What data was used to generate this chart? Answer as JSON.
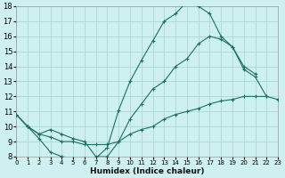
{
  "bg_color": "#cff0f0",
  "grid_color": "#aad8d8",
  "line_color": "#1a7060",
  "xlabel": "Humidex (Indice chaleur)",
  "xlim": [
    0,
    23
  ],
  "ylim": [
    8,
    18
  ],
  "xticks": [
    0,
    1,
    2,
    3,
    4,
    5,
    6,
    7,
    8,
    9,
    10,
    11,
    12,
    13,
    14,
    15,
    16,
    17,
    18,
    19,
    20,
    21,
    22,
    23
  ],
  "yticks": [
    8,
    9,
    10,
    11,
    12,
    13,
    14,
    15,
    16,
    17,
    18
  ],
  "curve1_x": [
    0,
    1,
    2,
    3,
    4,
    5,
    6,
    7,
    8,
    9,
    10,
    11,
    12,
    13,
    14,
    15,
    16,
    17,
    18,
    19,
    20,
    21,
    22
  ],
  "curve1_y": [
    10.8,
    10.0,
    9.2,
    8.3,
    8.0,
    7.9,
    7.9,
    7.9,
    8.6,
    11.1,
    13.0,
    14.4,
    15.7,
    17.0,
    17.5,
    18.3,
    18.0,
    17.5,
    16.0,
    15.3,
    13.8,
    13.3,
    12.0
  ],
  "curve2_x": [
    0,
    1,
    2,
    3,
    4,
    5,
    6,
    7,
    8,
    9,
    10,
    11,
    12,
    13,
    14,
    15,
    16,
    17,
    18,
    19,
    20,
    21,
    22,
    23
  ],
  "curve2_y": [
    10.8,
    10.0,
    9.5,
    9.8,
    9.5,
    9.2,
    9.0,
    8.0,
    8.0,
    9.0,
    10.5,
    11.5,
    12.5,
    13.0,
    14.0,
    14.5,
    15.5,
    16.0,
    15.8,
    15.3,
    14.0,
    13.5,
    null,
    null
  ],
  "curve3_x": [
    0,
    1,
    2,
    3,
    4,
    5,
    6,
    7,
    8,
    9,
    10,
    11,
    12,
    13,
    14,
    15,
    16,
    17,
    18,
    19,
    20,
    21,
    22,
    23
  ],
  "curve3_y": [
    10.8,
    10.0,
    9.5,
    9.3,
    9.0,
    9.0,
    8.8,
    8.8,
    8.8,
    9.0,
    9.5,
    9.8,
    10.0,
    10.5,
    10.8,
    11.0,
    11.2,
    11.5,
    11.7,
    11.8,
    12.0,
    12.0,
    12.0,
    11.8
  ]
}
